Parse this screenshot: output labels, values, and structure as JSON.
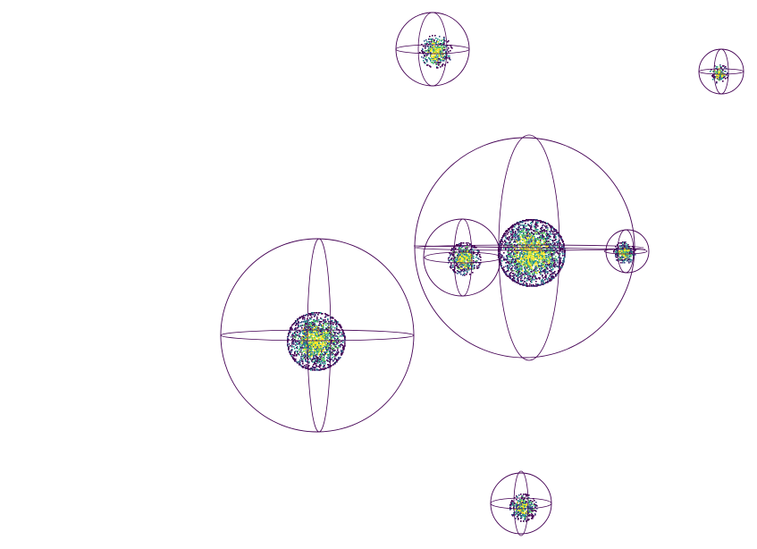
{
  "colors": {
    "background": "#ffffff",
    "wireframe": "#440154",
    "density_palette": [
      "#440154",
      "#3b528b",
      "#21918c",
      "#5ec962",
      "#fde725"
    ]
  },
  "clusters": [
    {
      "id": "cluster-top",
      "points": 420,
      "spread": 0.42
    },
    {
      "id": "cluster-top-right",
      "points": 160,
      "spread": 0.4
    },
    {
      "id": "cluster-main",
      "points": 2600,
      "spread": 0.58
    },
    {
      "id": "cluster-main-left",
      "points": 520,
      "spread": 0.48
    },
    {
      "id": "cluster-main-right",
      "points": 300,
      "spread": 0.45
    },
    {
      "id": "cluster-left",
      "points": 1900,
      "spread": 0.52
    },
    {
      "id": "cluster-bottom",
      "points": 420,
      "spread": 0.45
    }
  ]
}
